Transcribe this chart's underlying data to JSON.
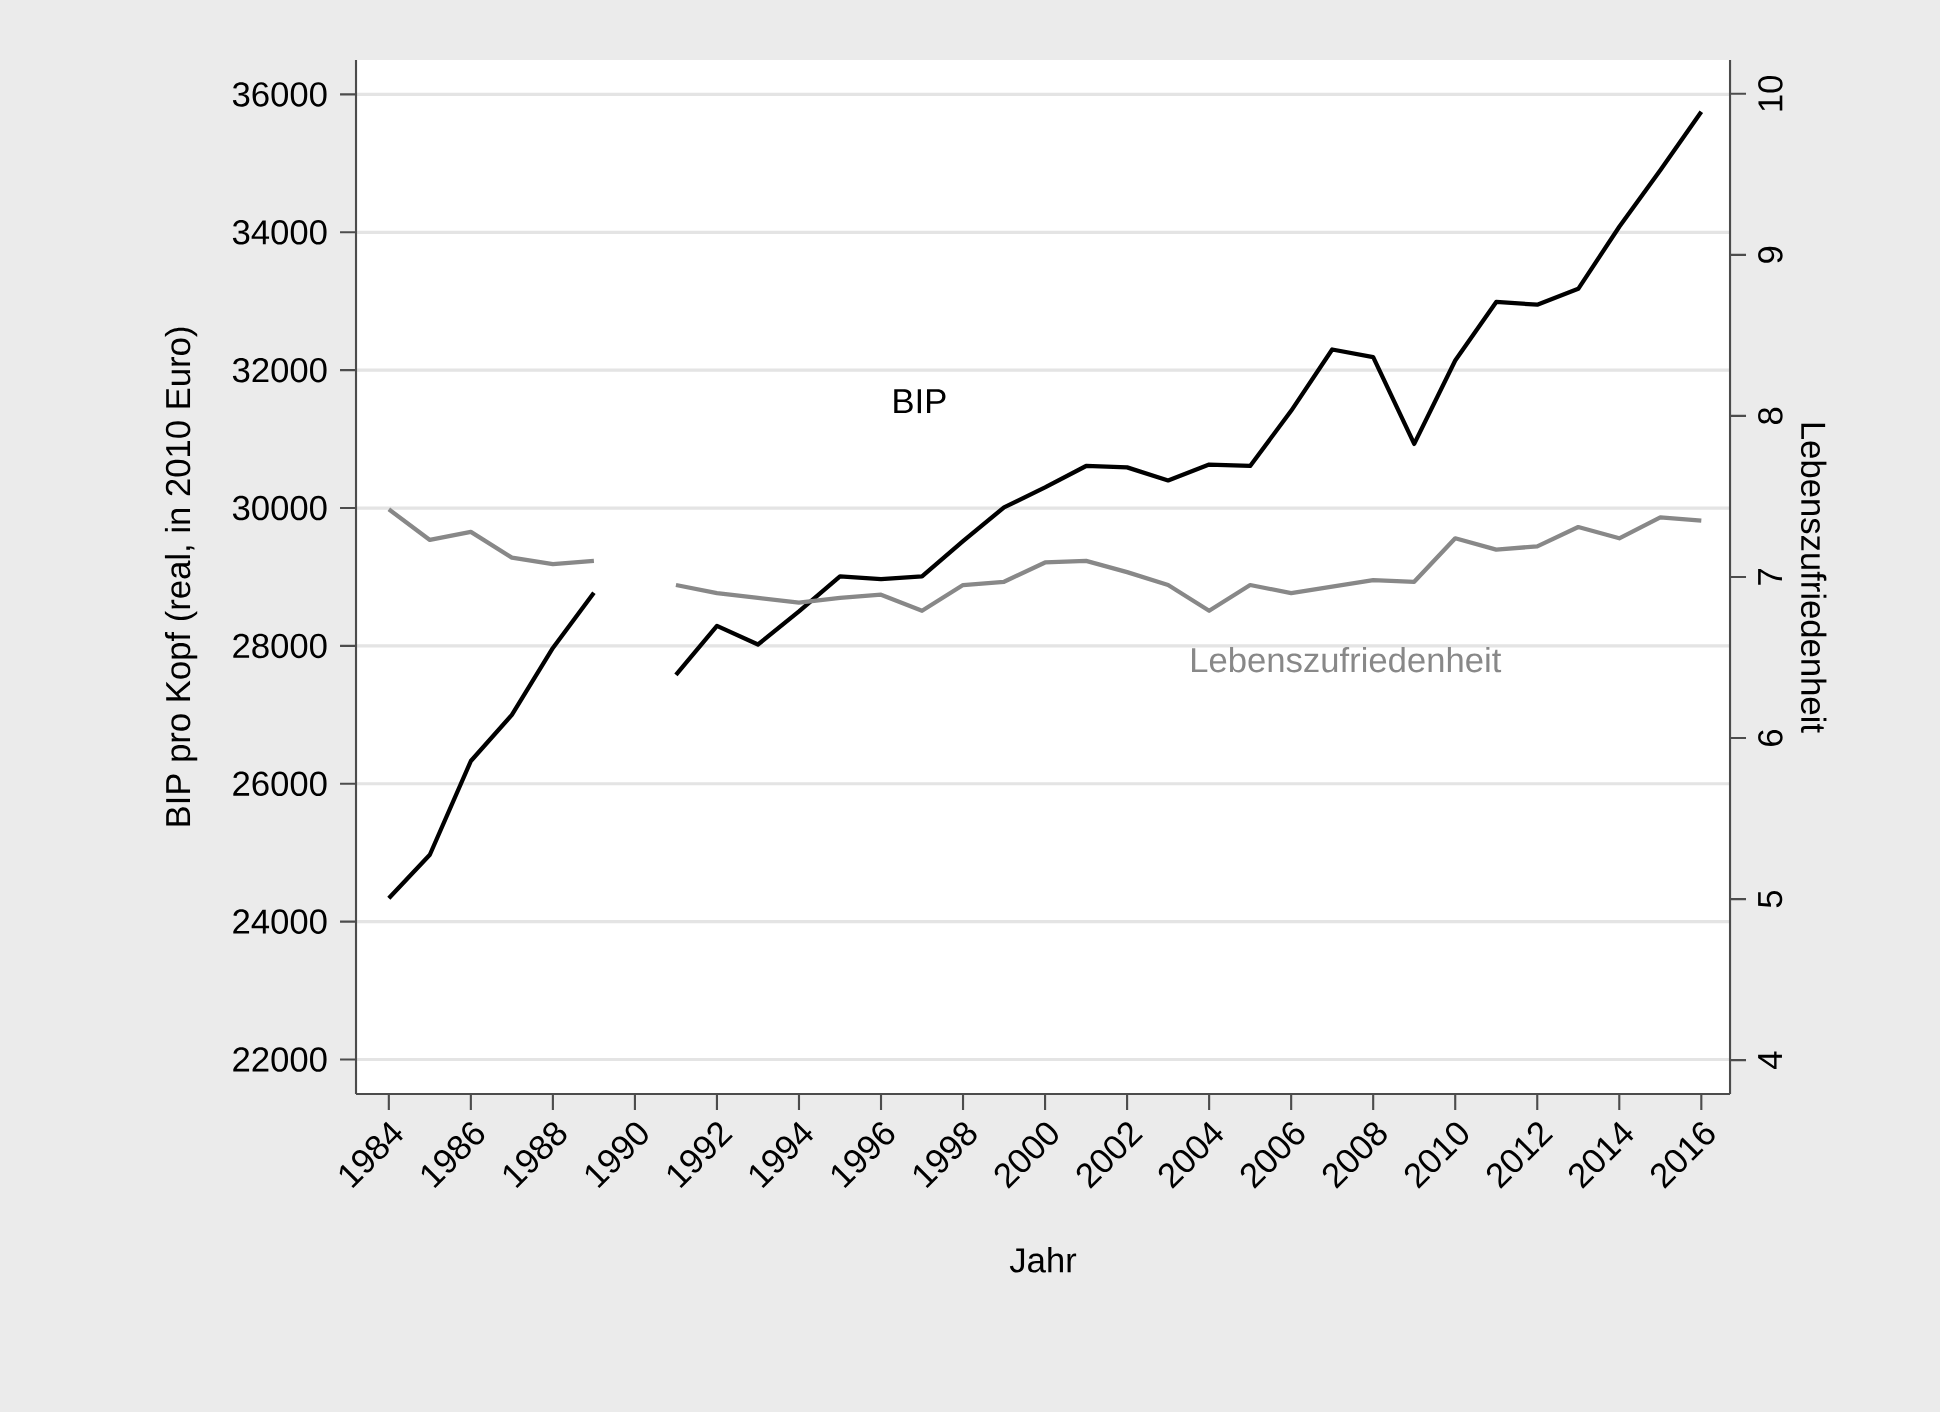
{
  "chart_data": {
    "type": "line",
    "xlabel": "Jahr",
    "ylabel": "BIP pro Kopf (real, in 2010 Euro)",
    "y2label": "Lebenszufriedenheit",
    "x": [
      1984,
      1985,
      1986,
      1987,
      1988,
      1989,
      1990,
      1991,
      1992,
      1993,
      1994,
      1995,
      1996,
      1997,
      1998,
      1999,
      2000,
      2001,
      2002,
      2003,
      2004,
      2005,
      2006,
      2007,
      2008,
      2009,
      2010,
      2011,
      2012,
      2013,
      2014,
      2015,
      2016
    ],
    "series": [
      {
        "name": "BIP",
        "color": "#000000",
        "values": [
          24340,
          24970,
          26330,
          27000,
          27970,
          28770,
          null,
          27580,
          28290,
          28020,
          28500,
          29010,
          28970,
          29010,
          29520,
          30010,
          30300,
          30610,
          30590,
          30400,
          30630,
          30610,
          31410,
          32300,
          32190,
          30930,
          32140,
          32990,
          32950,
          33180,
          34080,
          34900,
          35750
        ]
      },
      {
        "name": "Lebenszufriedenheit",
        "color": "#888888",
        "axis": "y2",
        "values": [
          7.42,
          7.23,
          7.28,
          7.12,
          7.08,
          7.1,
          null,
          6.95,
          6.9,
          6.87,
          6.84,
          6.87,
          6.89,
          6.79,
          6.95,
          6.97,
          7.09,
          7.1,
          7.03,
          6.95,
          6.79,
          6.95,
          6.9,
          6.94,
          6.98,
          6.97,
          7.24,
          7.17,
          7.19,
          7.31,
          7.24,
          7.37,
          7.35
        ]
      }
    ],
    "xlim": [
      1983.2,
      2016.7
    ],
    "xticks": [
      1984,
      1986,
      1988,
      1990,
      1992,
      1994,
      1996,
      1998,
      2000,
      2002,
      2004,
      2006,
      2008,
      2010,
      2012,
      2014,
      2016
    ],
    "ylim": [
      21500,
      36500
    ],
    "yticks": [
      22000,
      24000,
      26000,
      28000,
      30000,
      32000,
      34000,
      36000
    ],
    "y2lim": [
      3.79,
      10.21
    ],
    "y2ticks": [
      4,
      5,
      6,
      7,
      8,
      9,
      10
    ],
    "grid": "y",
    "legend": false,
    "marker": "none",
    "line_style": "solid"
  }
}
